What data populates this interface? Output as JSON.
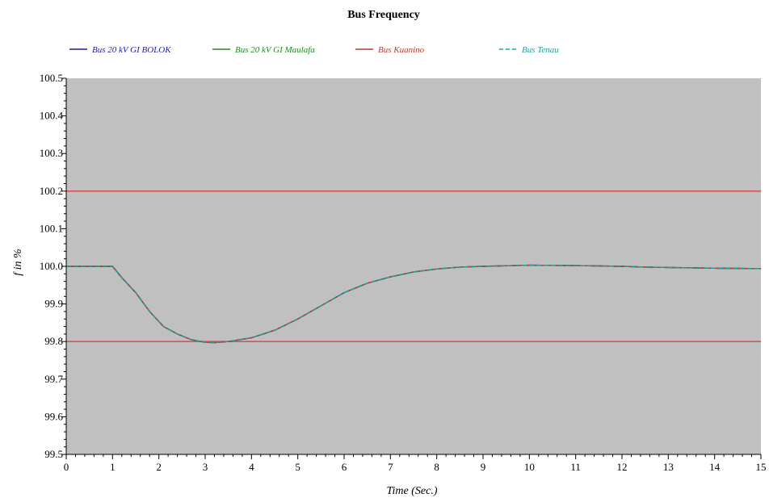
{
  "chart_data": {
    "type": "line",
    "title": "Bus Frequency",
    "xlabel": "Time (Sec.)",
    "ylabel": "f in %",
    "xlim": [
      0,
      15
    ],
    "ylim": [
      99.5,
      100.5
    ],
    "x_ticks": [
      "0",
      "1",
      "2",
      "3",
      "4",
      "5",
      "6",
      "7",
      "8",
      "9",
      "10",
      "11",
      "12",
      "13",
      "14",
      "15"
    ],
    "y_ticks": [
      "99.5",
      "99.6",
      "99.7",
      "99.8",
      "99.9",
      "100.0",
      "100.1",
      "100.2",
      "100.3",
      "100.4",
      "100.5"
    ],
    "grid": false,
    "legend_position": "top",
    "plot_background": "#c0c0c0",
    "series": [
      {
        "name": "Bus 20 kV GI BOLOK",
        "color": "#1a1aa0",
        "style": "solid",
        "x": [
          0,
          1.0,
          1.2,
          1.5,
          1.8,
          2.1,
          2.4,
          2.7,
          3.0,
          3.2,
          3.5,
          4.0,
          4.5,
          5.0,
          5.5,
          6.0,
          6.5,
          7.0,
          7.5,
          8.0,
          8.5,
          9.0,
          10.0,
          11.0,
          12.0,
          12.5,
          13.0,
          14.0,
          15.0
        ],
        "y": [
          100.0,
          100.0,
          99.97,
          99.93,
          99.88,
          99.84,
          99.82,
          99.805,
          99.798,
          99.797,
          99.8,
          99.81,
          99.83,
          99.86,
          99.895,
          99.93,
          99.955,
          99.972,
          99.985,
          99.993,
          99.998,
          100.0,
          100.003,
          100.002,
          100.0,
          99.998,
          99.997,
          99.995,
          99.994
        ]
      },
      {
        "name": "Bus 20 kV GI Maulafa",
        "color": "#1e8c1e",
        "style": "solid",
        "x": [
          0,
          1.0,
          1.2,
          1.5,
          1.8,
          2.1,
          2.4,
          2.7,
          3.0,
          3.2,
          3.5,
          4.0,
          4.5,
          5.0,
          5.5,
          6.0,
          6.5,
          7.0,
          7.5,
          8.0,
          8.5,
          9.0,
          10.0,
          11.0,
          12.0,
          12.5,
          13.0,
          14.0,
          15.0
        ],
        "y": [
          100.0,
          100.0,
          99.97,
          99.93,
          99.88,
          99.84,
          99.82,
          99.805,
          99.798,
          99.797,
          99.8,
          99.81,
          99.83,
          99.86,
          99.895,
          99.93,
          99.955,
          99.972,
          99.985,
          99.993,
          99.998,
          100.0,
          100.003,
          100.002,
          100.0,
          99.998,
          99.997,
          99.995,
          99.994
        ]
      },
      {
        "name": "Bus Kuanino",
        "color": "#c0392b",
        "style": "solid",
        "x": [
          0,
          1.0,
          1.2,
          1.5,
          1.8,
          2.1,
          2.4,
          2.7,
          3.0,
          3.2,
          3.5,
          4.0,
          4.5,
          5.0,
          5.5,
          6.0,
          6.5,
          7.0,
          7.5,
          8.0,
          8.5,
          9.0,
          10.0,
          11.0,
          12.0,
          12.5,
          13.0,
          14.0,
          15.0
        ],
        "y": [
          100.0,
          100.0,
          99.97,
          99.93,
          99.88,
          99.84,
          99.82,
          99.805,
          99.798,
          99.797,
          99.8,
          99.81,
          99.83,
          99.86,
          99.895,
          99.93,
          99.955,
          99.972,
          99.985,
          99.993,
          99.998,
          100.0,
          100.003,
          100.002,
          100.0,
          99.998,
          99.997,
          99.995,
          99.994
        ]
      },
      {
        "name": "Bus Tenau",
        "color": "#1aa0a0",
        "style": "dashed",
        "x": [
          0,
          1.0,
          1.2,
          1.5,
          1.8,
          2.1,
          2.4,
          2.7,
          3.0,
          3.2,
          3.5,
          4.0,
          4.5,
          5.0,
          5.5,
          6.0,
          6.5,
          7.0,
          7.5,
          8.0,
          8.5,
          9.0,
          10.0,
          11.0,
          12.0,
          12.5,
          13.0,
          14.0,
          15.0
        ],
        "y": [
          100.0,
          100.0,
          99.97,
          99.93,
          99.88,
          99.84,
          99.82,
          99.805,
          99.798,
          99.797,
          99.8,
          99.81,
          99.83,
          99.86,
          99.895,
          99.93,
          99.955,
          99.972,
          99.985,
          99.993,
          99.998,
          100.0,
          100.003,
          100.002,
          100.0,
          99.998,
          99.997,
          99.995,
          99.994
        ]
      }
    ],
    "reference_lines": [
      {
        "y": 100.2,
        "color": "#d9544f"
      },
      {
        "y": 99.8,
        "color": "#d9544f"
      }
    ]
  }
}
